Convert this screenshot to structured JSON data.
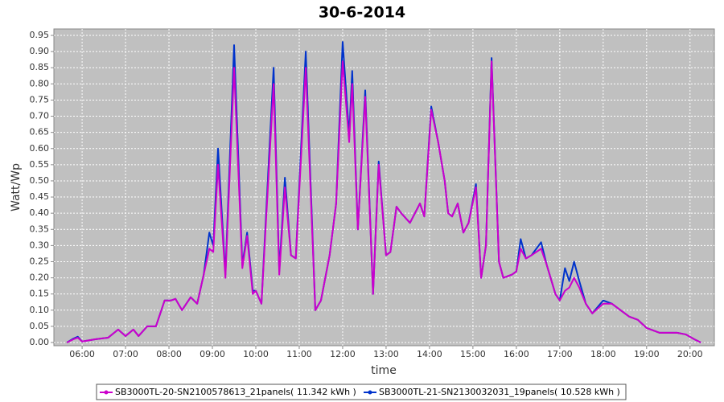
{
  "chart_data": {
    "type": "line",
    "title": "30-6-2014",
    "x_label": "time",
    "y_label": "Watt/Wp",
    "x": [
      5.65,
      5.8,
      5.9,
      6.0,
      6.3,
      6.6,
      6.83,
      7.0,
      7.18,
      7.3,
      7.5,
      7.7,
      7.9,
      8.05,
      8.15,
      8.3,
      8.5,
      8.65,
      8.8,
      8.93,
      9.02,
      9.13,
      9.3,
      9.5,
      9.69,
      9.8,
      9.93,
      10.0,
      10.13,
      10.41,
      10.54,
      10.67,
      10.81,
      10.92,
      11.15,
      11.37,
      11.5,
      11.7,
      11.85,
      12.0,
      12.15,
      12.22,
      12.35,
      12.52,
      12.7,
      12.83,
      13.0,
      13.1,
      13.24,
      13.35,
      13.55,
      13.78,
      13.88,
      14.04,
      14.2,
      14.35,
      14.43,
      14.52,
      14.65,
      14.78,
      14.9,
      15.07,
      15.19,
      15.3,
      15.43,
      15.6,
      15.7,
      15.9,
      16.0,
      16.1,
      16.22,
      16.35,
      16.57,
      16.7,
      16.9,
      17.0,
      17.12,
      17.22,
      17.33,
      17.45,
      17.6,
      17.75,
      18.0,
      18.2,
      18.4,
      18.6,
      18.8,
      19.0,
      19.3,
      19.7,
      19.9,
      20.1,
      20.25
    ],
    "series": [
      {
        "name": "SB3000TL-20-SN2100578613_21panels( 11.342 kWh )",
        "color": "#cc00cc",
        "values": [
          0,
          0.01,
          0.015,
          0.003,
          0.01,
          0.015,
          0.04,
          0.02,
          0.04,
          0.02,
          0.05,
          0.05,
          0.13,
          0.13,
          0.135,
          0.1,
          0.14,
          0.12,
          0.21,
          0.29,
          0.28,
          0.55,
          0.2,
          0.85,
          0.23,
          0.33,
          0.15,
          0.16,
          0.12,
          0.8,
          0.21,
          0.48,
          0.27,
          0.26,
          0.85,
          0.1,
          0.13,
          0.27,
          0.43,
          0.87,
          0.62,
          0.8,
          0.35,
          0.76,
          0.15,
          0.55,
          0.27,
          0.28,
          0.42,
          0.4,
          0.37,
          0.43,
          0.39,
          0.72,
          0.62,
          0.5,
          0.4,
          0.39,
          0.43,
          0.34,
          0.37,
          0.48,
          0.2,
          0.3,
          0.87,
          0.25,
          0.2,
          0.21,
          0.22,
          0.29,
          0.26,
          0.27,
          0.29,
          0.24,
          0.15,
          0.13,
          0.16,
          0.17,
          0.2,
          0.17,
          0.12,
          0.09,
          0.12,
          0.12,
          0.1,
          0.08,
          0.07,
          0.045,
          0.03,
          0.03,
          0.025,
          0.01,
          0
        ]
      },
      {
        "name": "SB3000TL-21-SN2130032031_19panels( 10.528 kWh )",
        "color": "#0033cc",
        "values": [
          0,
          0.012,
          0.018,
          0.003,
          0.01,
          0.015,
          0.04,
          0.02,
          0.04,
          0.02,
          0.05,
          0.05,
          0.13,
          0.13,
          0.135,
          0.1,
          0.14,
          0.12,
          0.21,
          0.34,
          0.3,
          0.6,
          0.21,
          0.92,
          0.24,
          0.34,
          0.16,
          0.16,
          0.12,
          0.85,
          0.22,
          0.51,
          0.27,
          0.26,
          0.9,
          0.1,
          0.13,
          0.27,
          0.43,
          0.93,
          0.64,
          0.84,
          0.35,
          0.78,
          0.15,
          0.56,
          0.27,
          0.28,
          0.42,
          0.4,
          0.37,
          0.43,
          0.39,
          0.73,
          0.62,
          0.5,
          0.4,
          0.39,
          0.43,
          0.34,
          0.37,
          0.49,
          0.2,
          0.3,
          0.88,
          0.25,
          0.2,
          0.21,
          0.22,
          0.32,
          0.26,
          0.27,
          0.31,
          0.24,
          0.15,
          0.13,
          0.23,
          0.19,
          0.25,
          0.19,
          0.12,
          0.09,
          0.13,
          0.12,
          0.1,
          0.08,
          0.07,
          0.045,
          0.03,
          0.03,
          0.025,
          0.01,
          0
        ]
      }
    ],
    "xlim": [
      5.35,
      20.56
    ],
    "ylim": [
      -0.01,
      0.97
    ],
    "xticks": [
      {
        "value": 6,
        "label": "06:00"
      },
      {
        "value": 7,
        "label": "07:00"
      },
      {
        "value": 8,
        "label": "08:00"
      },
      {
        "value": 9,
        "label": "09:00"
      },
      {
        "value": 10,
        "label": "10:00"
      },
      {
        "value": 11,
        "label": "11:00"
      },
      {
        "value": 12,
        "label": "12:00"
      },
      {
        "value": 13,
        "label": "13:00"
      },
      {
        "value": 14,
        "label": "14:00"
      },
      {
        "value": 15,
        "label": "15:00"
      },
      {
        "value": 16,
        "label": "16:00"
      },
      {
        "value": 17,
        "label": "17:00"
      },
      {
        "value": 18,
        "label": "18:00"
      },
      {
        "value": 19,
        "label": "19:00"
      },
      {
        "value": 20,
        "label": "20:00"
      }
    ],
    "yticks": [
      {
        "value": 0,
        "label": "0.00"
      },
      0.05,
      {
        "value": 0.1,
        "label": "0.10"
      },
      0.15,
      {
        "value": 0.2,
        "label": "0.20"
      },
      0.25,
      {
        "value": 0.3,
        "label": "0.30"
      },
      0.35,
      {
        "value": 0.4,
        "label": "0.40"
      },
      0.45,
      {
        "value": 0.5,
        "label": "0.50"
      },
      0.55,
      {
        "value": 0.6,
        "label": "0.60"
      },
      0.65,
      {
        "value": 0.7,
        "label": "0.70"
      },
      0.75,
      {
        "value": 0.8,
        "label": "0.80"
      },
      0.85,
      {
        "value": 0.9,
        "label": "0.90"
      },
      0.95
    ],
    "grid": true,
    "legend": "bottom"
  }
}
